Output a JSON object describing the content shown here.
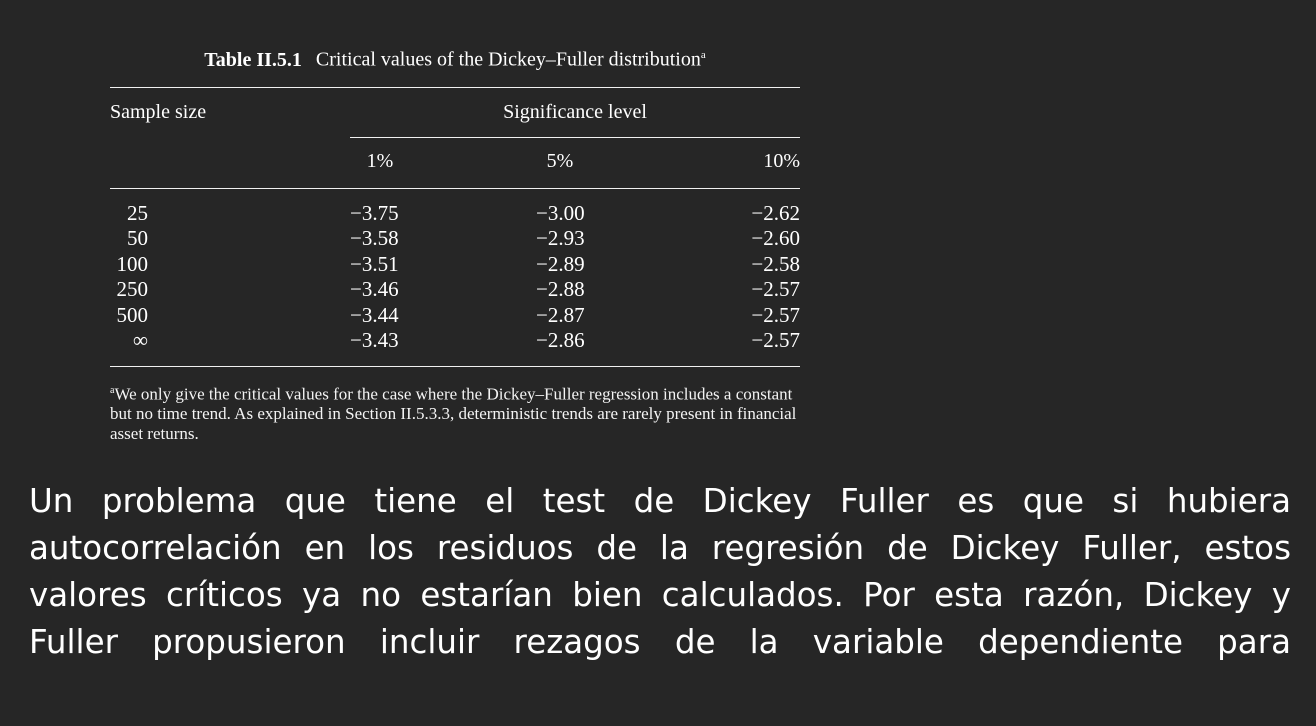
{
  "table": {
    "caption_label": "Table II.5.1",
    "caption_text": "Critical values of the Dickey–Fuller distribution",
    "caption_marker": "a",
    "header_sample": "Sample size",
    "header_significance": "Significance level",
    "columns": [
      "1%",
      "5%",
      "10%"
    ],
    "rows": [
      {
        "size": "25",
        "v1": "−3.75",
        "v5": "−3.00",
        "v10": "−2.62"
      },
      {
        "size": "50",
        "v1": "−3.58",
        "v5": "−2.93",
        "v10": "−2.60"
      },
      {
        "size": "100",
        "v1": "−3.51",
        "v5": "−2.89",
        "v10": "−2.58"
      },
      {
        "size": "250",
        "v1": "−3.46",
        "v5": "−2.88",
        "v10": "−2.57"
      },
      {
        "size": "500",
        "v1": "−3.44",
        "v5": "−2.87",
        "v10": "−2.57"
      },
      {
        "size": "∞",
        "v1": "−3.43",
        "v5": "−2.86",
        "v10": "−2.57"
      }
    ],
    "footnote_marker": "a",
    "footnote_text": "We only give the critical values for the case where the Dickey–Fuller regression includes a constant but no time trend. As explained in Section II.5.3.3, deterministic trends are rarely present in financial asset returns."
  },
  "paragraph": "Un problema que tiene el test de Dickey Fuller es que si hubiera autocorrelación en los residuos de la regresión de Dickey Fuller, estos valores críticos ya no estarían bien calculados. Por esta razón, Dickey y Fuller propusieron incluir rezagos de la variable dependiente para"
}
